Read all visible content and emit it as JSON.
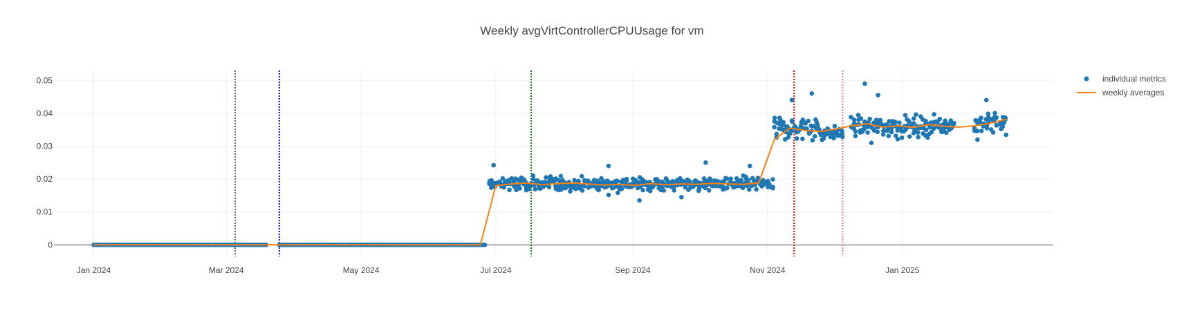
{
  "chart_data": {
    "type": "scatter",
    "title": "Weekly avgVirtControllerCPUUsage for vm",
    "xlabel": "",
    "ylabel": "",
    "xlim": [
      "2023-12-14",
      "2025-03-10"
    ],
    "ylim": [
      -0.0035,
      0.053
    ],
    "x_ticks": [
      {
        "date": "2024-01-01",
        "label": "Jan 2024"
      },
      {
        "date": "2024-03-01",
        "label": "Mar 2024"
      },
      {
        "date": "2024-05-01",
        "label": "May 2024"
      },
      {
        "date": "2024-07-01",
        "label": "Jul 2024"
      },
      {
        "date": "2024-09-01",
        "label": "Sep 2024"
      },
      {
        "date": "2024-11-01",
        "label": "Nov 2024"
      },
      {
        "date": "2025-01-01",
        "label": "Jan 2025"
      }
    ],
    "y_ticks": [
      {
        "value": 0,
        "label": "0"
      },
      {
        "value": 0.01,
        "label": "0.01"
      },
      {
        "value": 0.02,
        "label": "0.02"
      },
      {
        "value": 0.03,
        "label": "0.03"
      },
      {
        "value": 0.04,
        "label": "0.04"
      },
      {
        "value": 0.05,
        "label": "0.05"
      }
    ],
    "grid": true,
    "legend_position": "top-right",
    "vertical_lines": [
      {
        "date": "2024-03-05",
        "color": "#666666"
      },
      {
        "date": "2024-03-25",
        "color": "#0000ff"
      },
      {
        "date": "2024-07-17",
        "color": "#008000"
      },
      {
        "date": "2024-11-13",
        "color": "#e00000"
      },
      {
        "date": "2024-12-05",
        "color": "#e377c2"
      }
    ],
    "series": [
      {
        "name": "individual metrics",
        "mode": "markers",
        "color": "#1f77b4",
        "segments": [
          {
            "start": "2024-01-01",
            "end": "2024-03-19",
            "center": 0.0,
            "spread": 0.0
          },
          {
            "start": "2024-03-25",
            "end": "2024-06-26",
            "center": 0.0,
            "spread": 0.0
          },
          {
            "start": "2024-06-28",
            "end": "2024-11-03",
            "center": 0.0185,
            "spread": 0.0018
          },
          {
            "start": "2024-11-04",
            "end": "2024-11-24",
            "center": 0.0355,
            "spread": 0.0028
          },
          {
            "start": "2024-11-25",
            "end": "2024-12-05",
            "center": 0.034,
            "spread": 0.0016
          },
          {
            "start": "2024-12-09",
            "end": "2025-01-12",
            "center": 0.036,
            "spread": 0.0025
          },
          {
            "start": "2025-01-13",
            "end": "2025-01-24",
            "center": 0.0365,
            "spread": 0.002
          },
          {
            "start": "2025-02-03",
            "end": "2025-02-17",
            "center": 0.037,
            "spread": 0.0025
          }
        ],
        "outliers": [
          {
            "x": "2024-06-30",
            "y": 0.0242
          },
          {
            "x": "2024-08-21",
            "y": 0.024
          },
          {
            "x": "2024-09-04",
            "y": 0.0135
          },
          {
            "x": "2024-09-23",
            "y": 0.0145
          },
          {
            "x": "2024-10-04",
            "y": 0.025
          },
          {
            "x": "2024-10-24",
            "y": 0.024
          },
          {
            "x": "2024-11-12",
            "y": 0.044
          },
          {
            "x": "2024-11-21",
            "y": 0.046
          },
          {
            "x": "2024-12-15",
            "y": 0.049
          },
          {
            "x": "2024-12-21",
            "y": 0.0455
          },
          {
            "x": "2024-12-18",
            "y": 0.031
          },
          {
            "x": "2025-02-08",
            "y": 0.044
          },
          {
            "x": "2025-02-04",
            "y": 0.032
          }
        ]
      },
      {
        "name": "weekly averages",
        "mode": "lines",
        "color": "#ff7f0e",
        "x": [
          "2024-01-01",
          "2024-01-08",
          "2024-01-15",
          "2024-01-22",
          "2024-01-29",
          "2024-02-05",
          "2024-02-12",
          "2024-02-19",
          "2024-02-26",
          "2024-03-04",
          "2024-03-11",
          "2024-03-18",
          "2024-03-25",
          "2024-04-01",
          "2024-04-08",
          "2024-04-15",
          "2024-04-22",
          "2024-04-29",
          "2024-05-06",
          "2024-05-13",
          "2024-05-20",
          "2024-05-27",
          "2024-06-03",
          "2024-06-10",
          "2024-06-17",
          "2024-06-24",
          "2024-07-01",
          "2024-07-08",
          "2024-07-15",
          "2024-07-22",
          "2024-07-29",
          "2024-08-05",
          "2024-08-12",
          "2024-08-19",
          "2024-08-26",
          "2024-09-02",
          "2024-09-09",
          "2024-09-16",
          "2024-09-23",
          "2024-09-30",
          "2024-10-07",
          "2024-10-14",
          "2024-10-21",
          "2024-10-28",
          "2024-11-04",
          "2024-11-11",
          "2024-11-18",
          "2024-11-25",
          "2024-12-02",
          "2024-12-09",
          "2024-12-16",
          "2024-12-23",
          "2024-12-30",
          "2025-01-06",
          "2025-01-13",
          "2025-01-20",
          "2025-01-27",
          "2025-02-03",
          "2025-02-10",
          "2025-02-17"
        ],
        "y": [
          0,
          0,
          0,
          0,
          0,
          0,
          0,
          0,
          0,
          0,
          0,
          0,
          0,
          0,
          0,
          0,
          0,
          0,
          0,
          0,
          0,
          0,
          0,
          0,
          0,
          0,
          0.018,
          0.0185,
          0.0188,
          0.0183,
          0.0186,
          0.0188,
          0.0185,
          0.0182,
          0.0184,
          0.0181,
          0.0186,
          0.0183,
          0.0185,
          0.0184,
          0.0187,
          0.0185,
          0.0184,
          0.0188,
          0.032,
          0.0355,
          0.0348,
          0.0345,
          0.0352,
          0.0362,
          0.0368,
          0.0358,
          0.0362,
          0.0357,
          0.0366,
          0.036,
          0.0358,
          0.0362,
          0.037,
          0.0382
        ]
      }
    ]
  }
}
